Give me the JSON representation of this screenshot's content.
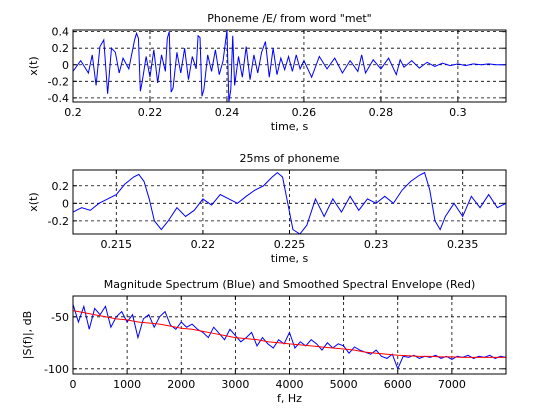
{
  "chart_data": [
    {
      "type": "line",
      "title": "Phoneme /E/ from word \"met\"",
      "xlabel": "time, s",
      "ylabel": "x(t)",
      "xlim": [
        0.2,
        0.3125
      ],
      "ylim": [
        -0.45,
        0.42
      ],
      "xticks": [
        0.2,
        0.22,
        0.24,
        0.26,
        0.28,
        0.3
      ],
      "xtick_labels": [
        "0.2",
        "0.22",
        "0.24",
        "0.26",
        "0.28",
        "0.3"
      ],
      "yticks": [
        -0.4,
        -0.2,
        0,
        0.2,
        0.4
      ],
      "ytick_labels": [
        "-0.4",
        "-0.2",
        "0",
        "0.2",
        "0.4"
      ],
      "grid": true,
      "series": [
        {
          "color": "#0000ff",
          "x": [
            0.2,
            0.202,
            0.204,
            0.205,
            0.206,
            0.207,
            0.208,
            0.209,
            0.21,
            0.211,
            0.212,
            0.213,
            0.2145,
            0.216,
            0.2165,
            0.217,
            0.2175,
            0.218,
            0.219,
            0.22,
            0.221,
            0.222,
            0.223,
            0.224,
            0.2245,
            0.225,
            0.2255,
            0.226,
            0.227,
            0.228,
            0.229,
            0.23,
            0.231,
            0.232,
            0.2325,
            0.233,
            0.2335,
            0.234,
            0.235,
            0.236,
            0.237,
            0.238,
            0.239,
            0.24,
            0.2405,
            0.241,
            0.2415,
            0.242,
            0.243,
            0.244,
            0.245,
            0.246,
            0.247,
            0.248,
            0.249,
            0.25,
            0.251,
            0.252,
            0.253,
            0.254,
            0.255,
            0.256,
            0.257,
            0.258,
            0.259,
            0.26,
            0.262,
            0.264,
            0.266,
            0.268,
            0.27,
            0.272,
            0.274,
            0.275,
            0.276,
            0.278,
            0.28,
            0.282,
            0.284,
            0.285,
            0.286,
            0.288,
            0.29,
            0.292,
            0.294,
            0.296,
            0.298,
            0.3,
            0.302,
            0.304,
            0.306,
            0.308,
            0.31,
            0.3125
          ],
          "y": [
            -0.08,
            0.05,
            -0.1,
            0.12,
            -0.25,
            0.22,
            0.3,
            -0.35,
            0.2,
            0.15,
            -0.1,
            0.08,
            -0.05,
            0.3,
            0.38,
            0.32,
            -0.32,
            -0.2,
            0.1,
            -0.15,
            0.18,
            -0.22,
            0.12,
            -0.08,
            0.32,
            0.4,
            -0.33,
            -0.28,
            0.15,
            -0.1,
            0.2,
            -0.18,
            0.1,
            -0.05,
            0.35,
            0.33,
            -0.38,
            -0.3,
            0.12,
            -0.08,
            0.18,
            -0.12,
            0.05,
            0.42,
            -0.45,
            -0.3,
            0.35,
            -0.25,
            0.1,
            -0.15,
            0.22,
            -0.18,
            0.12,
            -0.1,
            0.15,
            0.28,
            -0.15,
            0.2,
            -0.12,
            0.08,
            -0.06,
            0.1,
            -0.08,
            0.12,
            -0.05,
            0.05,
            -0.15,
            0.1,
            -0.05,
            0.08,
            -0.1,
            0.05,
            -0.08,
            0.12,
            -0.1,
            0.06,
            -0.05,
            0.08,
            -0.12,
            0.06,
            -0.03,
            0.05,
            -0.04,
            0.03,
            -0.02,
            0.02,
            -0.01,
            0.01,
            -0.01,
            0.01,
            0,
            0.01,
            0,
            0
          ]
        }
      ]
    },
    {
      "type": "line",
      "title": "25ms of phoneme",
      "xlabel": "time, s",
      "ylabel": "x(t)",
      "xlim": [
        0.2125,
        0.2375
      ],
      "ylim": [
        -0.35,
        0.38
      ],
      "xticks": [
        0.215,
        0.22,
        0.225,
        0.23,
        0.235
      ],
      "xtick_labels": [
        "0.215",
        "0.22",
        "0.225",
        "0.23",
        "0.235"
      ],
      "yticks": [
        -0.2,
        0,
        0.2
      ],
      "ytick_labels": [
        "-0.2",
        "0",
        "0.2"
      ],
      "grid": true,
      "series": [
        {
          "color": "#0000ff",
          "x": [
            0.2125,
            0.213,
            0.2135,
            0.214,
            0.2145,
            0.215,
            0.2155,
            0.216,
            0.2163,
            0.2166,
            0.2169,
            0.2172,
            0.2176,
            0.218,
            0.2185,
            0.219,
            0.2195,
            0.22,
            0.2205,
            0.221,
            0.2215,
            0.222,
            0.2225,
            0.223,
            0.2235,
            0.224,
            0.2243,
            0.2246,
            0.2249,
            0.2252,
            0.2256,
            0.226,
            0.2265,
            0.227,
            0.2275,
            0.228,
            0.2285,
            0.229,
            0.2295,
            0.23,
            0.2305,
            0.231,
            0.2315,
            0.232,
            0.2325,
            0.2328,
            0.2331,
            0.2334,
            0.2337,
            0.234,
            0.2345,
            0.235,
            0.2355,
            0.236,
            0.2365,
            0.237,
            0.2375
          ],
          "y": [
            -0.1,
            -0.05,
            -0.08,
            0.0,
            0.05,
            0.1,
            0.22,
            0.3,
            0.33,
            0.25,
            0.05,
            -0.2,
            -0.3,
            -0.2,
            -0.05,
            -0.15,
            -0.08,
            0.05,
            -0.02,
            0.1,
            0.05,
            0.0,
            0.08,
            0.15,
            0.2,
            0.3,
            0.35,
            0.3,
            0.0,
            -0.3,
            -0.35,
            -0.25,
            0.05,
            -0.15,
            0.05,
            -0.1,
            0.08,
            -0.08,
            0.05,
            0.0,
            0.08,
            0.0,
            0.15,
            0.25,
            0.32,
            0.35,
            0.15,
            -0.2,
            -0.3,
            -0.15,
            0.0,
            -0.15,
            0.08,
            -0.05,
            0.1,
            -0.05,
            0.0
          ]
        }
      ]
    },
    {
      "type": "line",
      "title": "Magnitude Spectrum (Blue) and Smoothed Spectral Envelope (Red)",
      "xlabel": "f, Hz",
      "ylabel": "|S(f)|, dB",
      "xlim": [
        0,
        8000
      ],
      "ylim": [
        -105,
        -30
      ],
      "xticks": [
        0,
        1000,
        2000,
        3000,
        4000,
        5000,
        6000,
        7000
      ],
      "xtick_labels": [
        "0",
        "1000",
        "2000",
        "3000",
        "4000",
        "5000",
        "6000",
        "7000"
      ],
      "yticks": [
        -100,
        -50
      ],
      "ytick_labels": [
        "-100",
        "-50"
      ],
      "grid": true,
      "series": [
        {
          "color": "#0000ff",
          "x": [
            0,
            100,
            200,
            300,
            400,
            500,
            600,
            700,
            800,
            900,
            1000,
            1100,
            1200,
            1300,
            1400,
            1500,
            1600,
            1700,
            1800,
            1900,
            2000,
            2100,
            2200,
            2300,
            2400,
            2500,
            2600,
            2700,
            2800,
            2900,
            3000,
            3100,
            3200,
            3300,
            3400,
            3500,
            3600,
            3700,
            3800,
            3900,
            4000,
            4100,
            4200,
            4300,
            4400,
            4500,
            4600,
            4700,
            4800,
            4900,
            5000,
            5100,
            5200,
            5300,
            5400,
            5500,
            5600,
            5700,
            5800,
            5900,
            6000,
            6100,
            6200,
            6300,
            6400,
            6500,
            6600,
            6700,
            6800,
            6900,
            7000,
            7100,
            7200,
            7300,
            7400,
            7500,
            7600,
            7700,
            7800,
            7900,
            8000
          ],
          "y": [
            -38,
            -55,
            -40,
            -62,
            -42,
            -48,
            -40,
            -60,
            -50,
            -45,
            -55,
            -48,
            -70,
            -52,
            -48,
            -60,
            -50,
            -45,
            -58,
            -62,
            -55,
            -60,
            -57,
            -62,
            -65,
            -70,
            -60,
            -66,
            -72,
            -62,
            -68,
            -74,
            -70,
            -65,
            -78,
            -70,
            -76,
            -80,
            -72,
            -76,
            -65,
            -80,
            -74,
            -78,
            -72,
            -76,
            -82,
            -75,
            -80,
            -76,
            -78,
            -85,
            -79,
            -82,
            -84,
            -86,
            -82,
            -88,
            -90,
            -86,
            -100,
            -88,
            -89,
            -87,
            -90,
            -88,
            -89,
            -87,
            -90,
            -88,
            -91,
            -88,
            -89,
            -87,
            -90,
            -88,
            -89,
            -87,
            -90,
            -88,
            -89
          ]
        },
        {
          "color": "#ff0000",
          "x": [
            0,
            200,
            400,
            600,
            800,
            1000,
            1200,
            1400,
            1600,
            1800,
            2000,
            2200,
            2400,
            2600,
            2800,
            3000,
            3200,
            3400,
            3600,
            3800,
            4000,
            4200,
            4400,
            4600,
            4800,
            5000,
            5200,
            5400,
            5600,
            5800,
            6000,
            6200,
            6400,
            6600,
            6800,
            7000,
            7200,
            7400,
            7600,
            7800,
            8000
          ],
          "y": [
            -44,
            -46,
            -48,
            -50,
            -52,
            -53,
            -55,
            -56,
            -57,
            -59,
            -61,
            -62,
            -64,
            -66,
            -68,
            -70,
            -71,
            -72,
            -74,
            -75,
            -76,
            -77,
            -78,
            -79,
            -80,
            -81,
            -82,
            -84,
            -85,
            -86,
            -87,
            -87.5,
            -88,
            -88,
            -88.5,
            -88.5,
            -89,
            -89,
            -89,
            -89,
            -89
          ]
        }
      ]
    }
  ]
}
